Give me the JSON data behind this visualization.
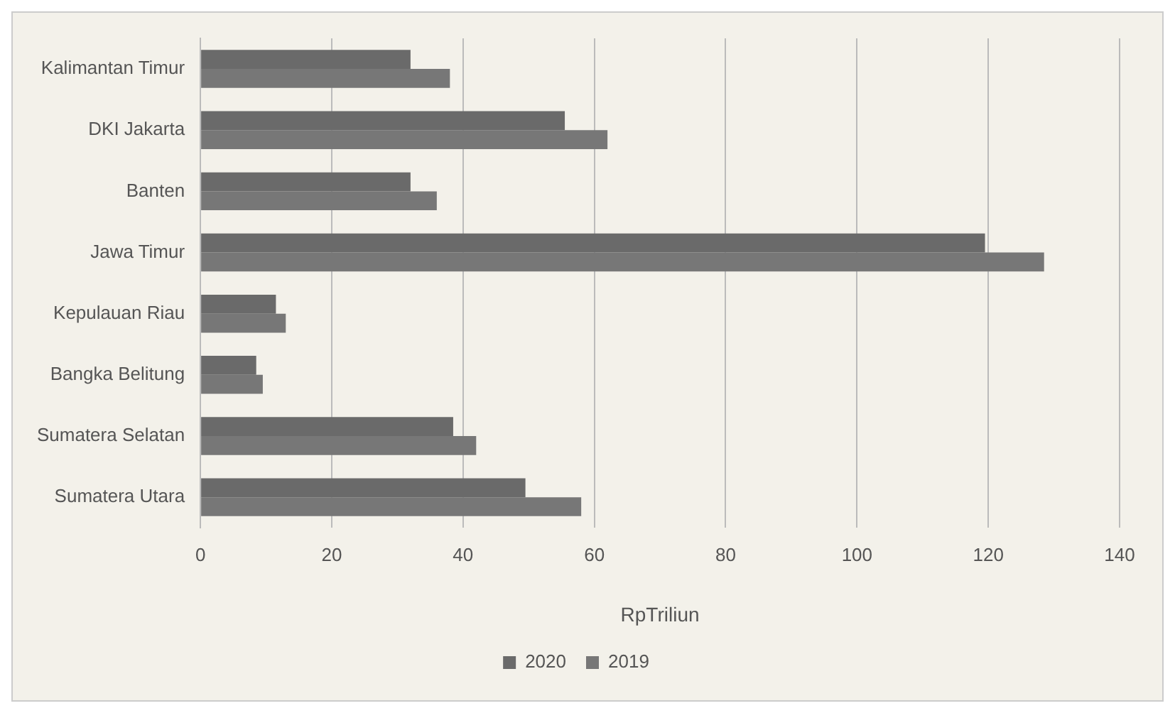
{
  "chart_data": {
    "type": "bar",
    "orientation": "horizontal",
    "xlabel": "RpTriliun",
    "categories": [
      "Kalimantan Timur",
      "DKI Jakarta",
      "Banten",
      "Jawa Timur",
      "Kepulauan Riau",
      "Bangka Belitung",
      "Sumatera Selatan",
      "Sumatera Utara"
    ],
    "series": [
      {
        "name": "2020",
        "color": "#6a6a6a",
        "values": [
          32,
          55.5,
          32,
          119.5,
          11.5,
          8.5,
          38.5,
          49.5
        ]
      },
      {
        "name": "2019",
        "color": "#777777",
        "values": [
          38,
          62,
          36,
          128.5,
          13,
          9.5,
          42,
          58
        ]
      }
    ],
    "xlim": [
      0,
      140
    ],
    "xticks": [
      0,
      20,
      40,
      60,
      80,
      100,
      120,
      140
    ],
    "grid": "x",
    "legend": "bottom"
  }
}
